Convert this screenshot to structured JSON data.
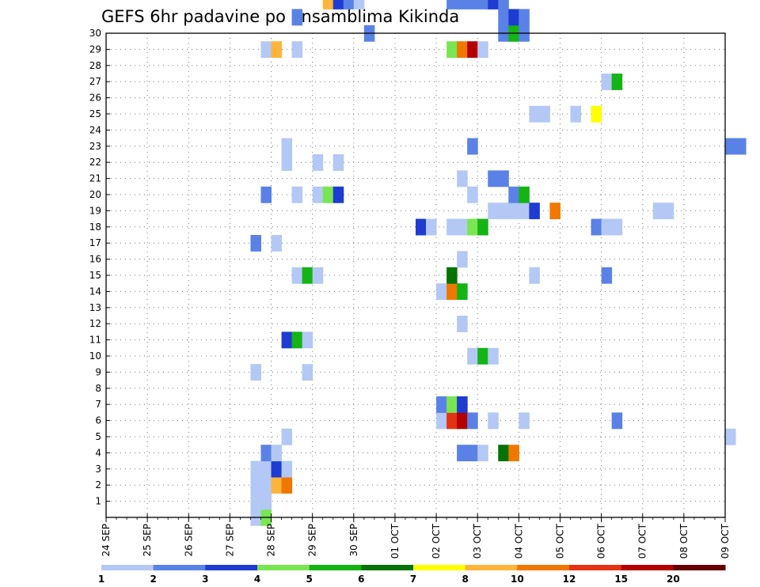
{
  "chart_data": {
    "type": "heatmap",
    "title": "GEFS 6hr padavine po ansamblima Kikinda",
    "xlabel": "",
    "ylabel": "",
    "x_ticks": [
      "24 SEP",
      "25 SEP",
      "26 SEP",
      "27 SEP",
      "28 SEP",
      "29 SEP",
      "30 SEP",
      "01 OCT",
      "02 OCT",
      "03 OCT",
      "04 OCT",
      "05 OCT",
      "06 OCT",
      "07 OCT",
      "08 OCT",
      "09 OCT"
    ],
    "y_ticks": [
      1,
      2,
      3,
      4,
      5,
      6,
      7,
      8,
      9,
      10,
      11,
      12,
      13,
      14,
      15,
      16,
      17,
      18,
      19,
      20,
      21,
      22,
      23,
      24,
      25,
      26,
      27,
      28,
      29,
      30
    ],
    "x_range_days": [
      0,
      15
    ],
    "y_range": [
      0,
      30
    ],
    "grid": true,
    "colorbar": {
      "levels": [
        "1",
        "2",
        "3",
        "4",
        "5",
        "6",
        "7",
        "8",
        "10",
        "12",
        "15",
        "20"
      ],
      "colors": [
        "#b4c8f5",
        "#5a82e6",
        "#1e3cd2",
        "#78e650",
        "#14b414",
        "#057305",
        "#ffff00",
        "#ffb43c",
        "#f07800",
        "#e63214",
        "#b40000",
        "#640000"
      ]
    },
    "cells": [
      [
        3.5,
        0,
        1
      ],
      [
        3.75,
        0,
        4
      ],
      [
        3.75,
        1,
        1
      ],
      [
        3.5,
        1,
        1
      ],
      [
        3.5,
        2,
        1
      ],
      [
        3.75,
        2,
        1
      ],
      [
        4,
        2,
        8
      ],
      [
        4.25,
        2,
        9
      ],
      [
        3.5,
        3,
        1
      ],
      [
        3.75,
        3,
        1
      ],
      [
        4,
        3,
        3
      ],
      [
        4.25,
        3,
        1
      ],
      [
        3.75,
        4,
        2
      ],
      [
        4,
        4,
        1
      ],
      [
        8.5,
        4,
        2
      ],
      [
        8.75,
        4,
        2
      ],
      [
        9,
        4,
        1
      ],
      [
        9.5,
        4,
        6
      ],
      [
        9.75,
        4,
        9
      ],
      [
        4.25,
        5,
        1
      ],
      [
        15,
        5,
        1
      ],
      [
        8,
        6,
        1
      ],
      [
        8.25,
        6,
        10
      ],
      [
        8.5,
        6,
        11
      ],
      [
        8.75,
        6,
        2
      ],
      [
        9.25,
        6,
        1
      ],
      [
        10,
        6,
        1
      ],
      [
        12.25,
        6,
        2
      ],
      [
        8,
        7,
        2
      ],
      [
        8.25,
        7,
        4
      ],
      [
        8.5,
        7,
        3
      ],
      [
        3.5,
        9,
        1
      ],
      [
        4.75,
        9,
        1
      ],
      [
        8.75,
        10,
        1
      ],
      [
        9,
        10,
        5
      ],
      [
        9.25,
        10,
        1
      ],
      [
        4.25,
        11,
        3
      ],
      [
        4.5,
        11,
        5
      ],
      [
        4.75,
        11,
        1
      ],
      [
        8.5,
        12,
        1
      ],
      [
        8,
        14,
        1
      ],
      [
        8.25,
        14,
        9
      ],
      [
        8.5,
        14,
        5
      ],
      [
        4.5,
        15,
        1
      ],
      [
        4.75,
        15,
        5
      ],
      [
        5,
        15,
        1
      ],
      [
        8.25,
        15,
        6
      ],
      [
        10.25,
        15,
        1
      ],
      [
        12,
        15,
        2
      ],
      [
        8.5,
        16,
        1
      ],
      [
        3.5,
        17,
        2
      ],
      [
        4,
        17,
        1
      ],
      [
        7.5,
        18,
        3
      ],
      [
        7.75,
        18,
        1
      ],
      [
        8.25,
        18,
        1
      ],
      [
        8.5,
        18,
        1
      ],
      [
        8.75,
        18,
        4
      ],
      [
        9,
        18,
        5
      ],
      [
        11.75,
        18,
        2
      ],
      [
        12,
        18,
        1
      ],
      [
        12.25,
        18,
        1
      ],
      [
        9.25,
        19,
        1
      ],
      [
        9.5,
        19,
        1
      ],
      [
        9.75,
        19,
        1
      ],
      [
        10,
        19,
        1
      ],
      [
        10.25,
        19,
        3
      ],
      [
        10.75,
        19,
        9
      ],
      [
        13.25,
        19,
        1
      ],
      [
        13.5,
        19,
        1
      ],
      [
        3.75,
        20,
        2
      ],
      [
        4.5,
        20,
        1
      ],
      [
        5,
        20,
        1
      ],
      [
        5.25,
        20,
        4
      ],
      [
        5.5,
        20,
        3
      ],
      [
        8.75,
        20,
        1
      ],
      [
        9.75,
        20,
        2
      ],
      [
        10,
        20,
        5
      ],
      [
        8.5,
        21,
        1
      ],
      [
        9.25,
        21,
        2
      ],
      [
        9.5,
        21,
        2
      ],
      [
        4.25,
        22,
        1
      ],
      [
        5,
        22,
        1
      ],
      [
        5.5,
        22,
        1
      ],
      [
        4.25,
        23,
        1
      ],
      [
        8.75,
        23,
        2
      ],
      [
        15,
        23,
        2
      ],
      [
        15.25,
        23,
        2
      ],
      [
        10.25,
        25,
        1
      ],
      [
        10.5,
        25,
        1
      ],
      [
        11.25,
        25,
        1
      ],
      [
        11.75,
        25,
        7
      ],
      [
        12,
        27,
        1
      ],
      [
        12.25,
        27,
        5
      ],
      [
        3.75,
        29,
        1
      ],
      [
        4,
        29,
        8
      ],
      [
        4.5,
        29,
        1
      ],
      [
        8.25,
        29,
        4
      ],
      [
        8.5,
        29,
        9
      ],
      [
        8.75,
        29,
        11
      ],
      [
        9,
        29,
        1
      ],
      [
        6.25,
        30,
        2
      ],
      [
        9.5,
        30,
        2
      ],
      [
        9.75,
        30,
        5
      ],
      [
        10,
        30,
        2
      ],
      [
        9.5,
        31,
        2
      ],
      [
        9.75,
        31,
        3
      ],
      [
        10,
        31,
        2
      ],
      [
        4.5,
        31,
        2
      ],
      [
        5.25,
        32,
        8
      ],
      [
        5.5,
        32,
        3
      ],
      [
        5.75,
        32,
        2
      ],
      [
        6,
        32,
        1
      ],
      [
        8.25,
        32,
        2
      ],
      [
        8.5,
        32,
        2
      ],
      [
        8.75,
        32,
        2
      ],
      [
        9,
        32,
        2
      ],
      [
        9.25,
        32,
        3
      ],
      [
        9.5,
        32,
        2
      ],
      [
        3.75,
        33,
        2
      ],
      [
        4,
        33,
        2
      ],
      [
        9,
        33,
        6
      ],
      [
        9.25,
        33,
        5
      ],
      [
        9.5,
        33,
        5
      ],
      [
        9.75,
        33,
        2
      ],
      [
        11,
        33,
        4
      ]
    ]
  }
}
